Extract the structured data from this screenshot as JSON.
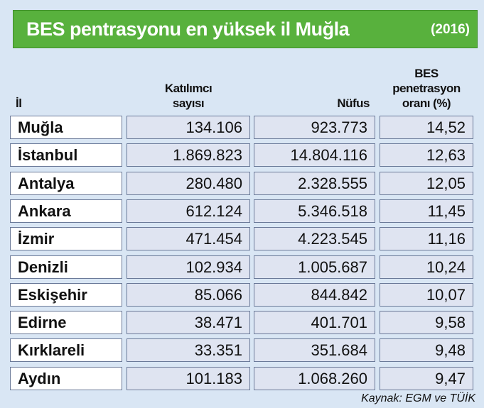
{
  "header": {
    "title": "BES pentrasyonu en yüksek il Muğla",
    "year": "(2016)"
  },
  "table": {
    "columns": [
      [
        "İl"
      ],
      [
        "Katılımcı",
        "sayısı"
      ],
      [
        "Nüfus"
      ],
      [
        "BES",
        "penetrasyon",
        "oranı (%)"
      ]
    ],
    "rows": [
      [
        "Muğla",
        "134.106",
        "923.773",
        "14,52"
      ],
      [
        "İstanbul",
        "1.869.823",
        "14.804.116",
        "12,63"
      ],
      [
        "Antalya",
        "280.480",
        "2.328.555",
        "12,05"
      ],
      [
        "Ankara",
        "612.124",
        "5.346.518",
        "11,45"
      ],
      [
        "İzmir",
        "471.454",
        "4.223.545",
        "11,16"
      ],
      [
        "Denizli",
        "102.934",
        "1.005.687",
        "10,24"
      ],
      [
        "Eskişehir",
        "85.066",
        "844.842",
        "10,07"
      ],
      [
        "Edirne",
        "38.471",
        "401.701",
        "9,58"
      ],
      [
        "Kırklareli",
        "33.351",
        "351.684",
        "9,48"
      ],
      [
        "Aydın",
        "101.183",
        "1.068.260",
        "9,47"
      ]
    ]
  },
  "source": "Kaynak: EGM ve TÜİK"
}
